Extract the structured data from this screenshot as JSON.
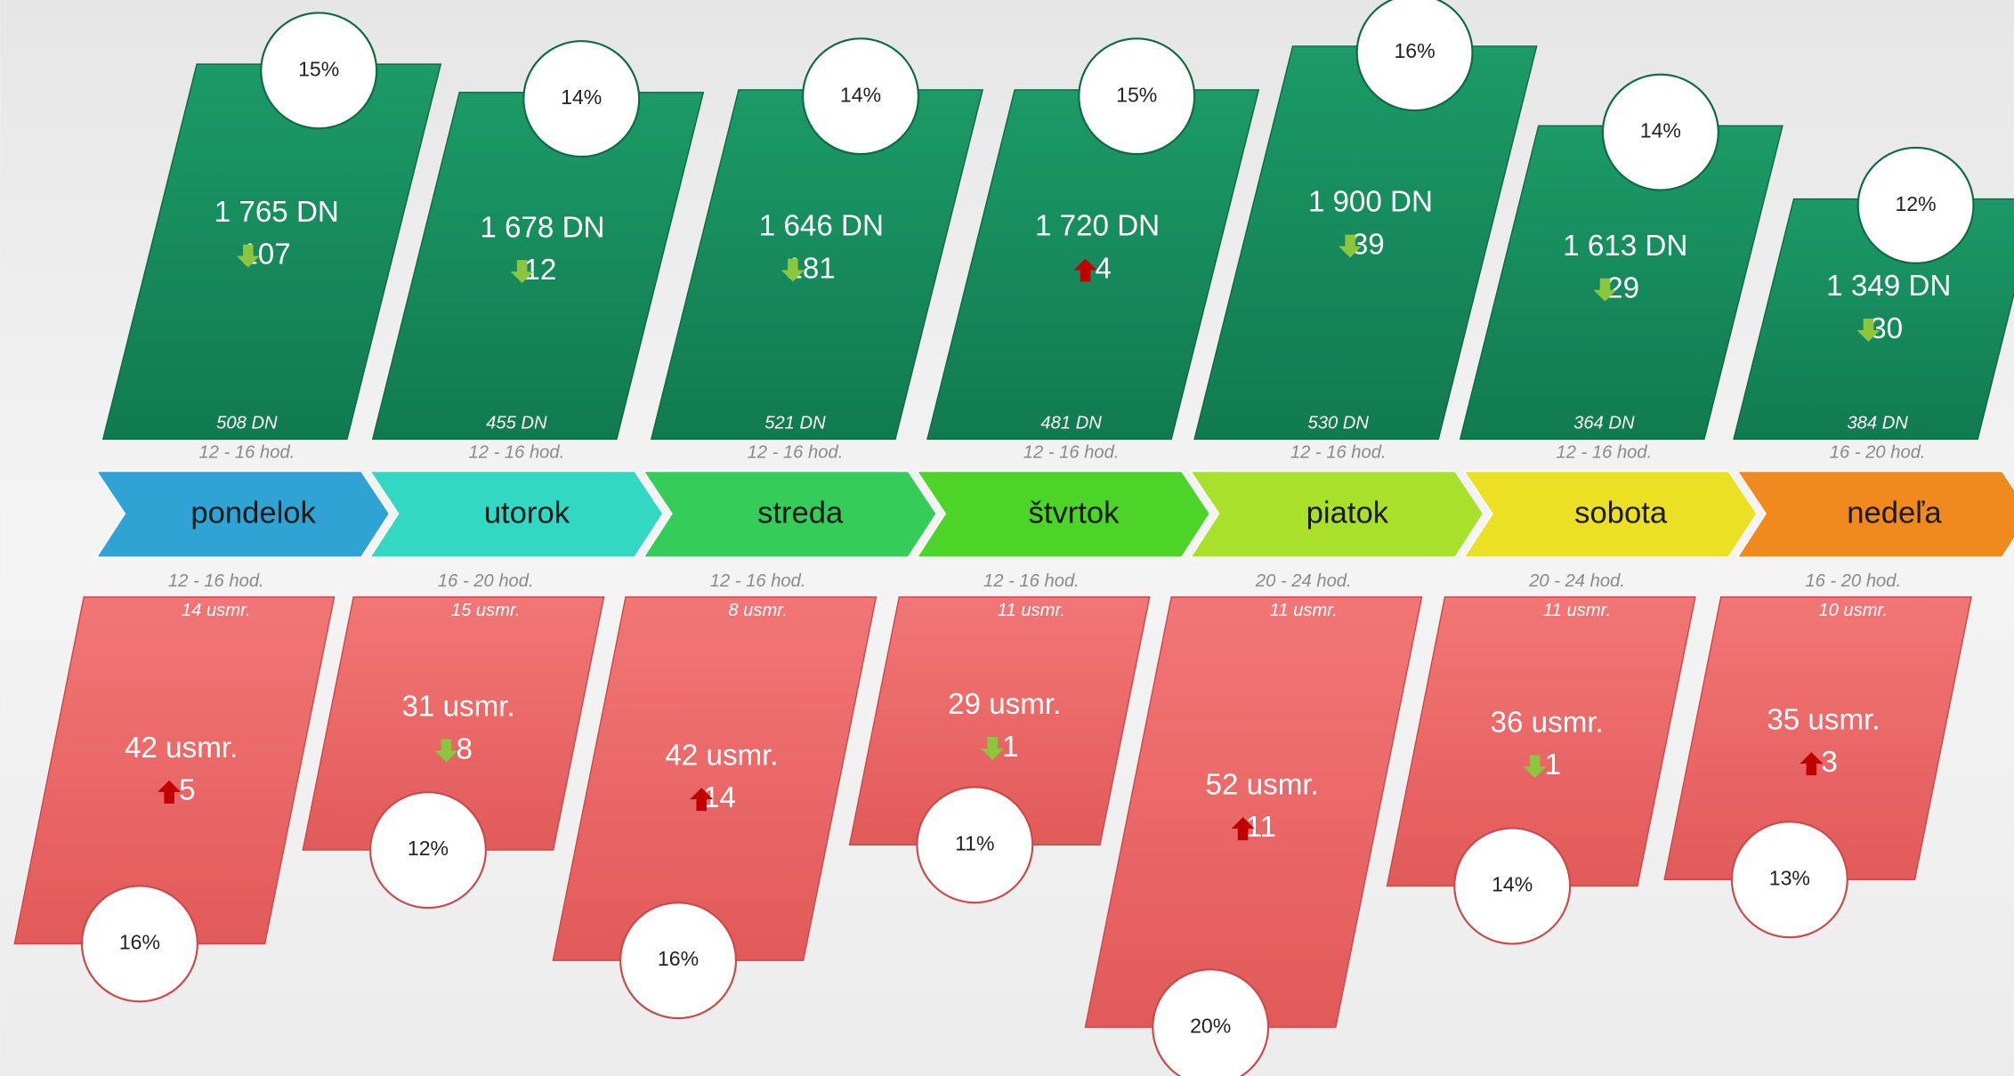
{
  "days": [
    {
      "name": "pondelok",
      "accidents": {
        "share": "15%",
        "count": "1 765 DN",
        "change": 107,
        "trend": "down",
        "peak_count": "508 DN",
        "peak_time": "12 - 16 hod."
      },
      "fatalities": {
        "peak_time": "12 - 16 hod.",
        "peak_count": "14 usmr.",
        "count": "42 usmr.",
        "change": 5,
        "trend": "up",
        "share": "16%"
      }
    },
    {
      "name": "utorok",
      "accidents": {
        "share": "14%",
        "count": "1 678 DN",
        "change": 12,
        "trend": "down",
        "peak_count": "455 DN",
        "peak_time": "12 - 16 hod."
      },
      "fatalities": {
        "peak_time": "16 - 20 hod.",
        "peak_count": "15 usmr.",
        "count": "31 usmr.",
        "change": 8,
        "trend": "down",
        "share": "12%"
      }
    },
    {
      "name": "streda",
      "accidents": {
        "share": "14%",
        "count": "1 646 DN",
        "change": 181,
        "trend": "down",
        "peak_count": "521 DN",
        "peak_time": "12 - 16 hod."
      },
      "fatalities": {
        "peak_time": "12 - 16 hod.",
        "peak_count": "8 usmr.",
        "count": "42 usmr.",
        "change": 14,
        "trend": "up",
        "share": "16%"
      }
    },
    {
      "name": "štvrtok",
      "accidents": {
        "share": "15%",
        "count": "1 720 DN",
        "change": 4,
        "trend": "up",
        "peak_count": "481 DN",
        "peak_time": "12 - 16 hod."
      },
      "fatalities": {
        "peak_time": "12 - 16 hod.",
        "peak_count": "11 usmr.",
        "count": "29 usmr.",
        "change": 1,
        "trend": "down",
        "share": "11%"
      }
    },
    {
      "name": "piatok",
      "accidents": {
        "share": "16%",
        "count": "1 900 DN",
        "change": 39,
        "trend": "down",
        "peak_count": "530 DN",
        "peak_time": "12 - 16 hod."
      },
      "fatalities": {
        "peak_time": "20 - 24 hod.",
        "peak_count": "11 usmr.",
        "count": "52 usmr.",
        "change": 11,
        "trend": "up",
        "share": "20%"
      }
    },
    {
      "name": "sobota",
      "accidents": {
        "share": "14%",
        "count": "1 613 DN",
        "change": 29,
        "trend": "down",
        "peak_count": "364 DN",
        "peak_time": "12 - 16 hod."
      },
      "fatalities": {
        "peak_time": "20 - 24 hod.",
        "peak_count": "11 usmr.",
        "count": "36 usmr.",
        "change": 1,
        "trend": "down",
        "share": "14%"
      }
    },
    {
      "name": "nedeľa",
      "accidents": {
        "share": "12%",
        "count": "1 349 DN",
        "change": 30,
        "trend": "down",
        "peak_count": "384 DN",
        "peak_time": "16 - 20 hod."
      },
      "fatalities": {
        "peak_time": "16 - 20 hod.",
        "peak_count": "10 usmr.",
        "count": "35 usmr.",
        "change": 3,
        "trend": "up",
        "share": "13%"
      }
    }
  ]
}
